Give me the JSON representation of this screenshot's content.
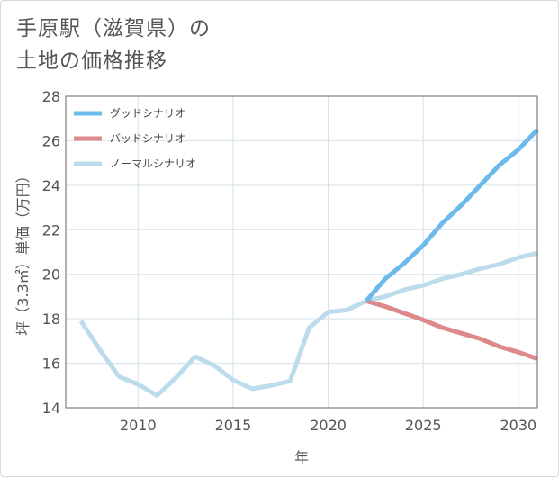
{
  "title_lines": [
    "手原駅（滋賀県）の",
    "土地の価格推移"
  ],
  "chart_data": {
    "type": "line",
    "title": "手原駅（滋賀県）の土地の価格推移",
    "xlabel": "年",
    "ylabel": "坪（3.3㎡）単価（万円）",
    "xlim": [
      2006.2,
      2031
    ],
    "ylim": [
      14,
      28
    ],
    "xticks": [
      2010,
      2015,
      2020,
      2025,
      2030
    ],
    "yticks": [
      14,
      16,
      18,
      20,
      22,
      24,
      26,
      28
    ],
    "grid": true,
    "legend_position": "top-left",
    "series": [
      {
        "name": "グッドシナリオ",
        "color": "#6cb9ec",
        "x": [
          2022,
          2023,
          2024,
          2025,
          2026,
          2027,
          2028,
          2029,
          2030,
          2031
        ],
        "y": [
          18.8,
          19.8,
          20.5,
          21.3,
          22.3,
          23.1,
          24.0,
          24.9,
          25.6,
          26.5
        ]
      },
      {
        "name": "バッドシナリオ",
        "color": "#de8a8d",
        "x": [
          2022,
          2023,
          2024,
          2025,
          2026,
          2027,
          2028,
          2029,
          2030,
          2031
        ],
        "y": [
          18.8,
          18.55,
          18.25,
          17.95,
          17.6,
          17.35,
          17.1,
          16.75,
          16.5,
          16.2
        ]
      },
      {
        "name": "ノーマルシナリオ",
        "color": "#bcdcec",
        "x": [
          2007,
          2008,
          2009,
          2010,
          2011,
          2012,
          2013,
          2014,
          2015,
          2016,
          2017,
          2018,
          2019,
          2020,
          2021,
          2022,
          2023,
          2024,
          2025,
          2026,
          2027,
          2028,
          2029,
          2030,
          2031
        ],
        "y": [
          17.9,
          16.6,
          15.4,
          15.05,
          14.55,
          15.35,
          16.3,
          15.9,
          15.25,
          14.85,
          15.0,
          15.2,
          17.6,
          18.3,
          18.4,
          18.8,
          19.0,
          19.3,
          19.5,
          19.8,
          20.0,
          20.25,
          20.45,
          20.75,
          20.95
        ]
      }
    ]
  }
}
